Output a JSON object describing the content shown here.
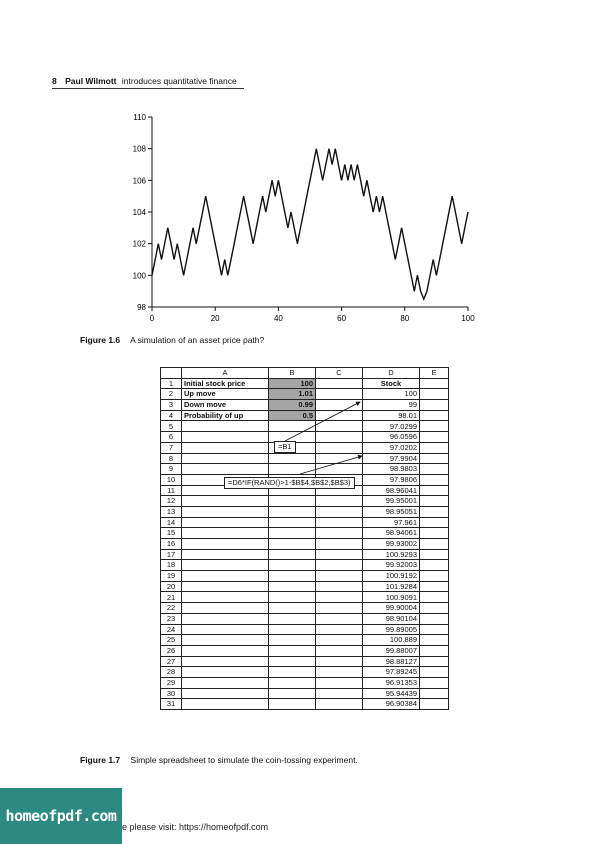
{
  "header": {
    "page_number": "8",
    "author": "Paul Wilmott",
    "book": "introduces quantitative finance"
  },
  "figure_1_6": {
    "label": "Figure 1.6",
    "caption": "A simulation of an asset price path?"
  },
  "chart_data": {
    "type": "line",
    "title": "",
    "xlabel": "",
    "ylabel": "",
    "xlim": [
      0,
      100
    ],
    "ylim": [
      98,
      110
    ],
    "xticks": [
      0,
      20,
      40,
      60,
      80,
      100
    ],
    "yticks": [
      98,
      100,
      102,
      104,
      106,
      108,
      110
    ],
    "grid": false,
    "series": [
      {
        "x": [
          0,
          1,
          2,
          3,
          4,
          5,
          6,
          7,
          8,
          9,
          10,
          11,
          12,
          13,
          14,
          15,
          16,
          17,
          18,
          19,
          20,
          21,
          22,
          23,
          24,
          25,
          26,
          27,
          28,
          29,
          30,
          31,
          32,
          33,
          34,
          35,
          36,
          37,
          38,
          39,
          40,
          41,
          42,
          43,
          44,
          45,
          46,
          47,
          48,
          49,
          50,
          51,
          52,
          53,
          54,
          55,
          56,
          57,
          58,
          59,
          60,
          61,
          62,
          63,
          64,
          65,
          66,
          67,
          68,
          69,
          70,
          71,
          72,
          73,
          74,
          75,
          76,
          77,
          78,
          79,
          80,
          81,
          82,
          83,
          84,
          85,
          86,
          87,
          88,
          89,
          90,
          91,
          92,
          93,
          94,
          95,
          96,
          97,
          98,
          99,
          100
        ],
        "y": [
          100,
          101,
          102,
          101,
          102,
          103,
          102,
          101,
          102,
          101,
          100,
          101,
          102,
          103,
          102,
          103,
          104,
          105,
          104,
          103,
          102,
          101,
          100,
          101,
          100,
          101,
          102,
          103,
          104,
          105,
          104,
          103,
          102,
          103,
          104,
          105,
          104,
          105,
          106,
          105,
          106,
          105,
          104,
          103,
          104,
          103,
          102,
          103,
          104,
          105,
          106,
          107,
          108,
          107,
          106,
          107,
          108,
          107,
          108,
          107,
          106,
          107,
          106,
          107,
          106,
          107,
          106,
          105,
          106,
          105,
          104,
          105,
          104,
          105,
          104,
          103,
          102,
          101,
          102,
          103,
          102,
          101,
          100,
          99,
          100,
          99,
          98.5,
          99,
          100,
          101,
          100,
          101,
          102,
          103,
          104,
          105,
          104,
          103,
          102,
          103,
          104
        ]
      }
    ]
  },
  "spreadsheet": {
    "columns": [
      "A",
      "B",
      "C",
      "D",
      "E"
    ],
    "params": [
      {
        "row": "1",
        "label": "Initial stock price",
        "value": "100"
      },
      {
        "row": "2",
        "label": "Up move",
        "value": "1.01"
      },
      {
        "row": "3",
        "label": "Down move",
        "value": "0.99"
      },
      {
        "row": "4",
        "label": "Probability of up",
        "value": "0.5"
      }
    ],
    "d_header": "Stock",
    "d_values": [
      "100",
      "99",
      "98.01",
      "97.0299",
      "96.0596",
      "97.0202",
      "97.9904",
      "98.9803",
      "97.9806",
      "98.96041",
      "99.95001",
      "98.95051",
      "97.961",
      "98.94061",
      "99.93002",
      "100.9293",
      "99.92003",
      "100.9192",
      "101.9284",
      "100.9091",
      "99.90004",
      "98.90104",
      "99.89005",
      "100.889",
      "99.88007",
      "98.88127",
      "97.89245",
      "96.91353",
      "95.94439",
      "96.90384"
    ],
    "callout_b1": "=B1",
    "callout_formula": "=D6*IF(RAND()>1-$B$4,$B$2,$B$3)"
  },
  "figure_1_7": {
    "label": "Figure 1.7",
    "caption": "Simple spreadsheet to simulate the coin-tossing experiment."
  },
  "logo": "homeofpdf.com",
  "footer": "e please visit: https://homeofpdf.com"
}
